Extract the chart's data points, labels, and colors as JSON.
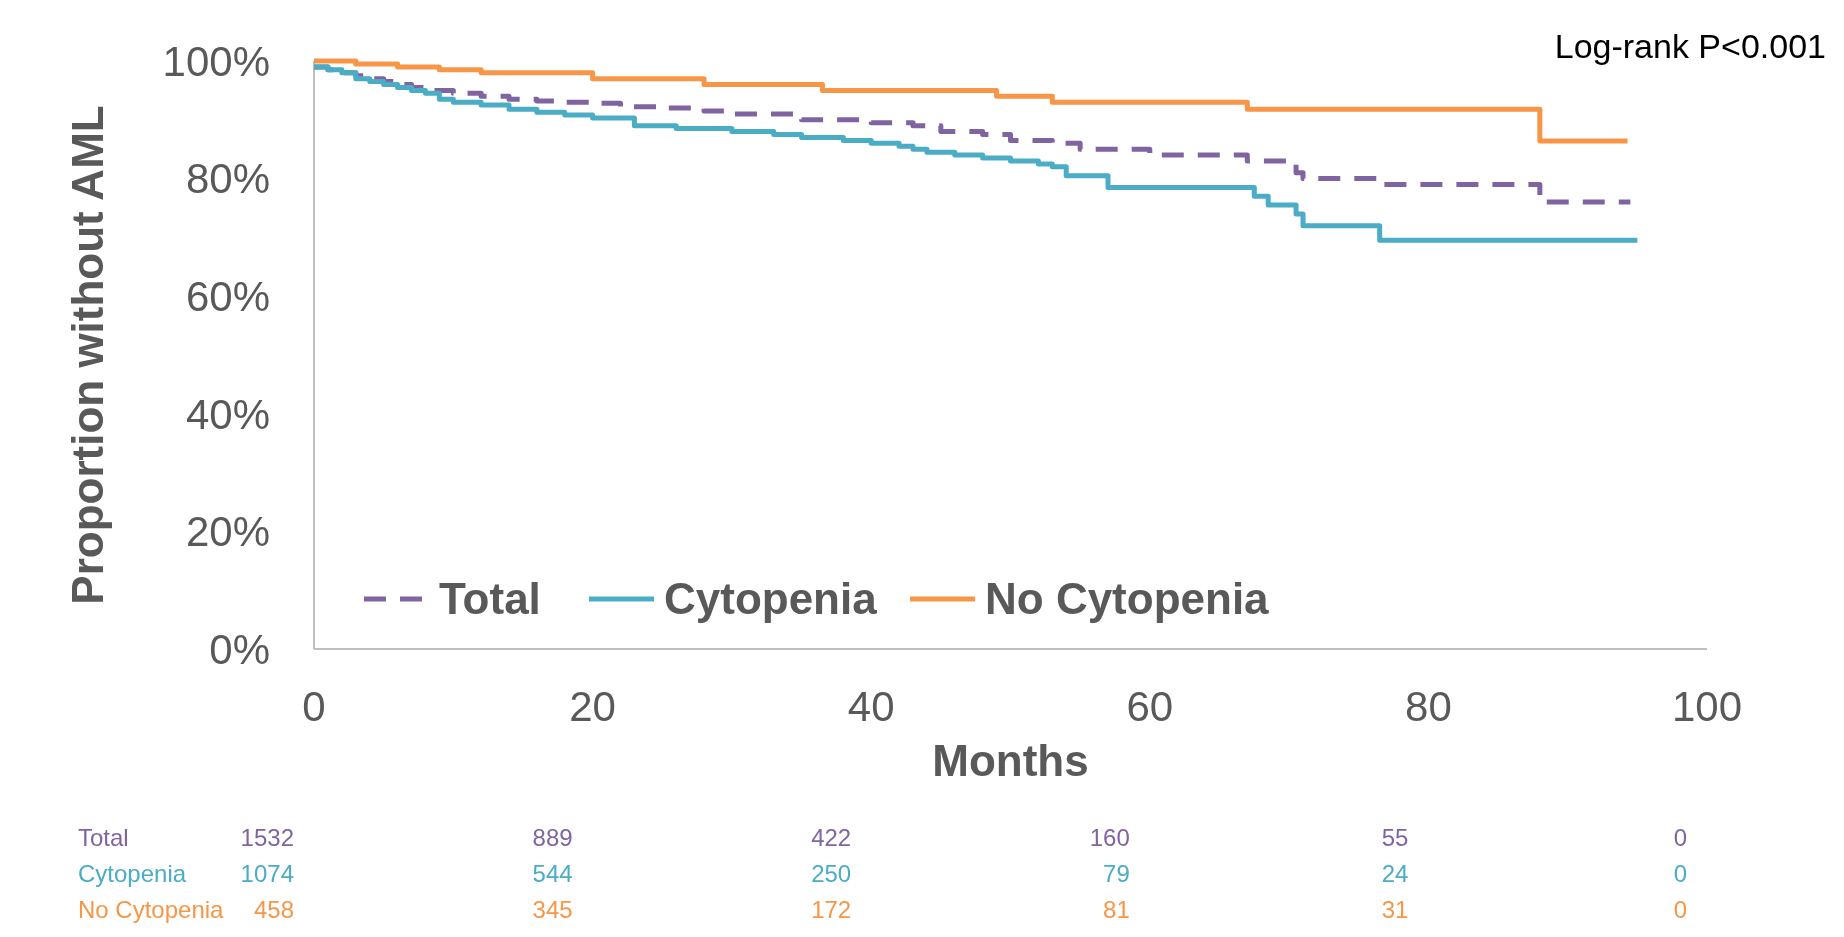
{
  "chart_data": {
    "type": "step",
    "xlabel": "Months",
    "ylabel": "Proportion without AML",
    "xlim": [
      0,
      100
    ],
    "xticks": [
      0,
      20,
      40,
      60,
      80,
      100
    ],
    "ylim": [
      0,
      100
    ],
    "yticks": [
      {
        "value": 0,
        "label": "0%"
      },
      {
        "value": 20,
        "label": "20%"
      },
      {
        "value": 40,
        "label": "40%"
      },
      {
        "value": 60,
        "label": "60%"
      },
      {
        "value": 80,
        "label": "80%"
      },
      {
        "value": 100,
        "label": "100%"
      }
    ],
    "grid": false,
    "legend": "bottom left",
    "series": [
      {
        "name": "Total",
        "color": "#8064a2",
        "line_style": "dashed",
        "x": [
          0,
          1,
          2,
          3,
          4,
          5,
          6,
          7,
          8,
          10,
          12,
          14,
          16,
          18,
          20,
          22,
          25,
          28,
          30,
          35,
          40,
          43,
          45,
          48,
          50,
          53,
          55,
          60,
          66,
          67,
          70.5,
          71,
          76.5,
          88,
          94.5
        ],
        "values": [
          99,
          98.5,
          98,
          97.5,
          97,
          96.5,
          96,
          95.5,
          95,
          94.5,
          94,
          93.5,
          93.2,
          93,
          92.8,
          92.2,
          92,
          91.5,
          91,
          90,
          89.5,
          89,
          88,
          87.5,
          86.5,
          86,
          85,
          84,
          84,
          83,
          81,
          80,
          79,
          76,
          76
        ]
      },
      {
        "name": "Cytopenia",
        "color": "#4bacc6",
        "line_style": "solid",
        "x": [
          0,
          1,
          2,
          3,
          4,
          5,
          6,
          7,
          8,
          9,
          10,
          12,
          14,
          16,
          18,
          20,
          23,
          26,
          30,
          33,
          35,
          38,
          40,
          42,
          43,
          44,
          46,
          48,
          50,
          52,
          53,
          54,
          57,
          67.5,
          68.5,
          70.5,
          71,
          76.5,
          95
        ],
        "values": [
          99,
          98.5,
          98,
          97,
          96.5,
          96,
          95.5,
          95,
          94.5,
          93.5,
          93,
          92.5,
          91.8,
          91.3,
          90.8,
          90.3,
          89,
          88.5,
          88,
          87.5,
          87,
          86.5,
          86,
          85.5,
          85,
          84.5,
          84,
          83.5,
          83,
          82.5,
          82,
          80.5,
          78.5,
          77,
          75.5,
          74,
          72,
          69.5,
          69.5
        ]
      },
      {
        "name": "No Cytopenia",
        "color": "#f79646",
        "line_style": "solid",
        "x": [
          0,
          3,
          6,
          9,
          12,
          20,
          28,
          36.5,
          49,
          53,
          67,
          88,
          94.3
        ],
        "values": [
          100,
          99.5,
          99,
          98.5,
          98,
          97,
          96,
          95,
          94,
          93,
          91.8,
          86.4,
          86.4
        ]
      }
    ],
    "annotations": [
      "Log-rank P<0.001",
      "Total",
      "1532",
      "889",
      "422",
      "160",
      "55",
      "0",
      "Cytopenia",
      "1074",
      "544",
      "250",
      "79",
      "24",
      "0",
      "No Cytopenia",
      "458",
      "345",
      "172",
      "81",
      "31",
      "0"
    ]
  }
}
